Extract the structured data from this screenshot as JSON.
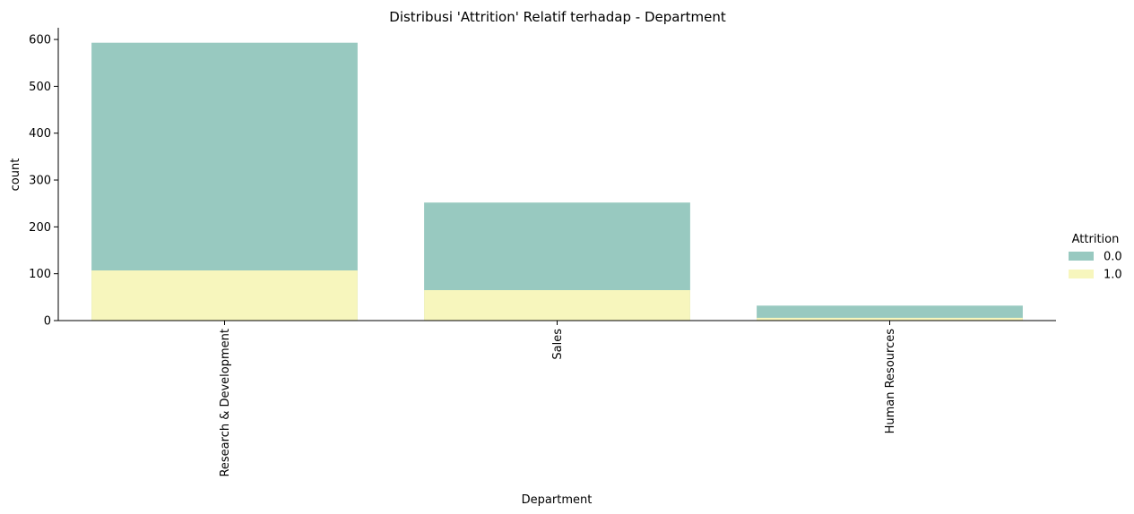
{
  "chart_data": {
    "type": "bar",
    "title": "Distribusi 'Attrition' Relatif terhadap - Department",
    "xlabel": "Department",
    "ylabel": "count",
    "categories": [
      "Research & Development",
      "Sales",
      "Human Resources"
    ],
    "series": [
      {
        "name": "0.0",
        "color": "#98c9c0",
        "values": [
          593,
          252,
          32
        ]
      },
      {
        "name": "1.0",
        "color": "#f7f6bd",
        "values": [
          107,
          65,
          6
        ]
      }
    ],
    "overlay": true,
    "ylim": [
      0,
      625
    ],
    "yticks": [
      0,
      100,
      200,
      300,
      400,
      500,
      600
    ],
    "grid": false,
    "legend": {
      "title": "Attrition",
      "placement": "right"
    }
  }
}
